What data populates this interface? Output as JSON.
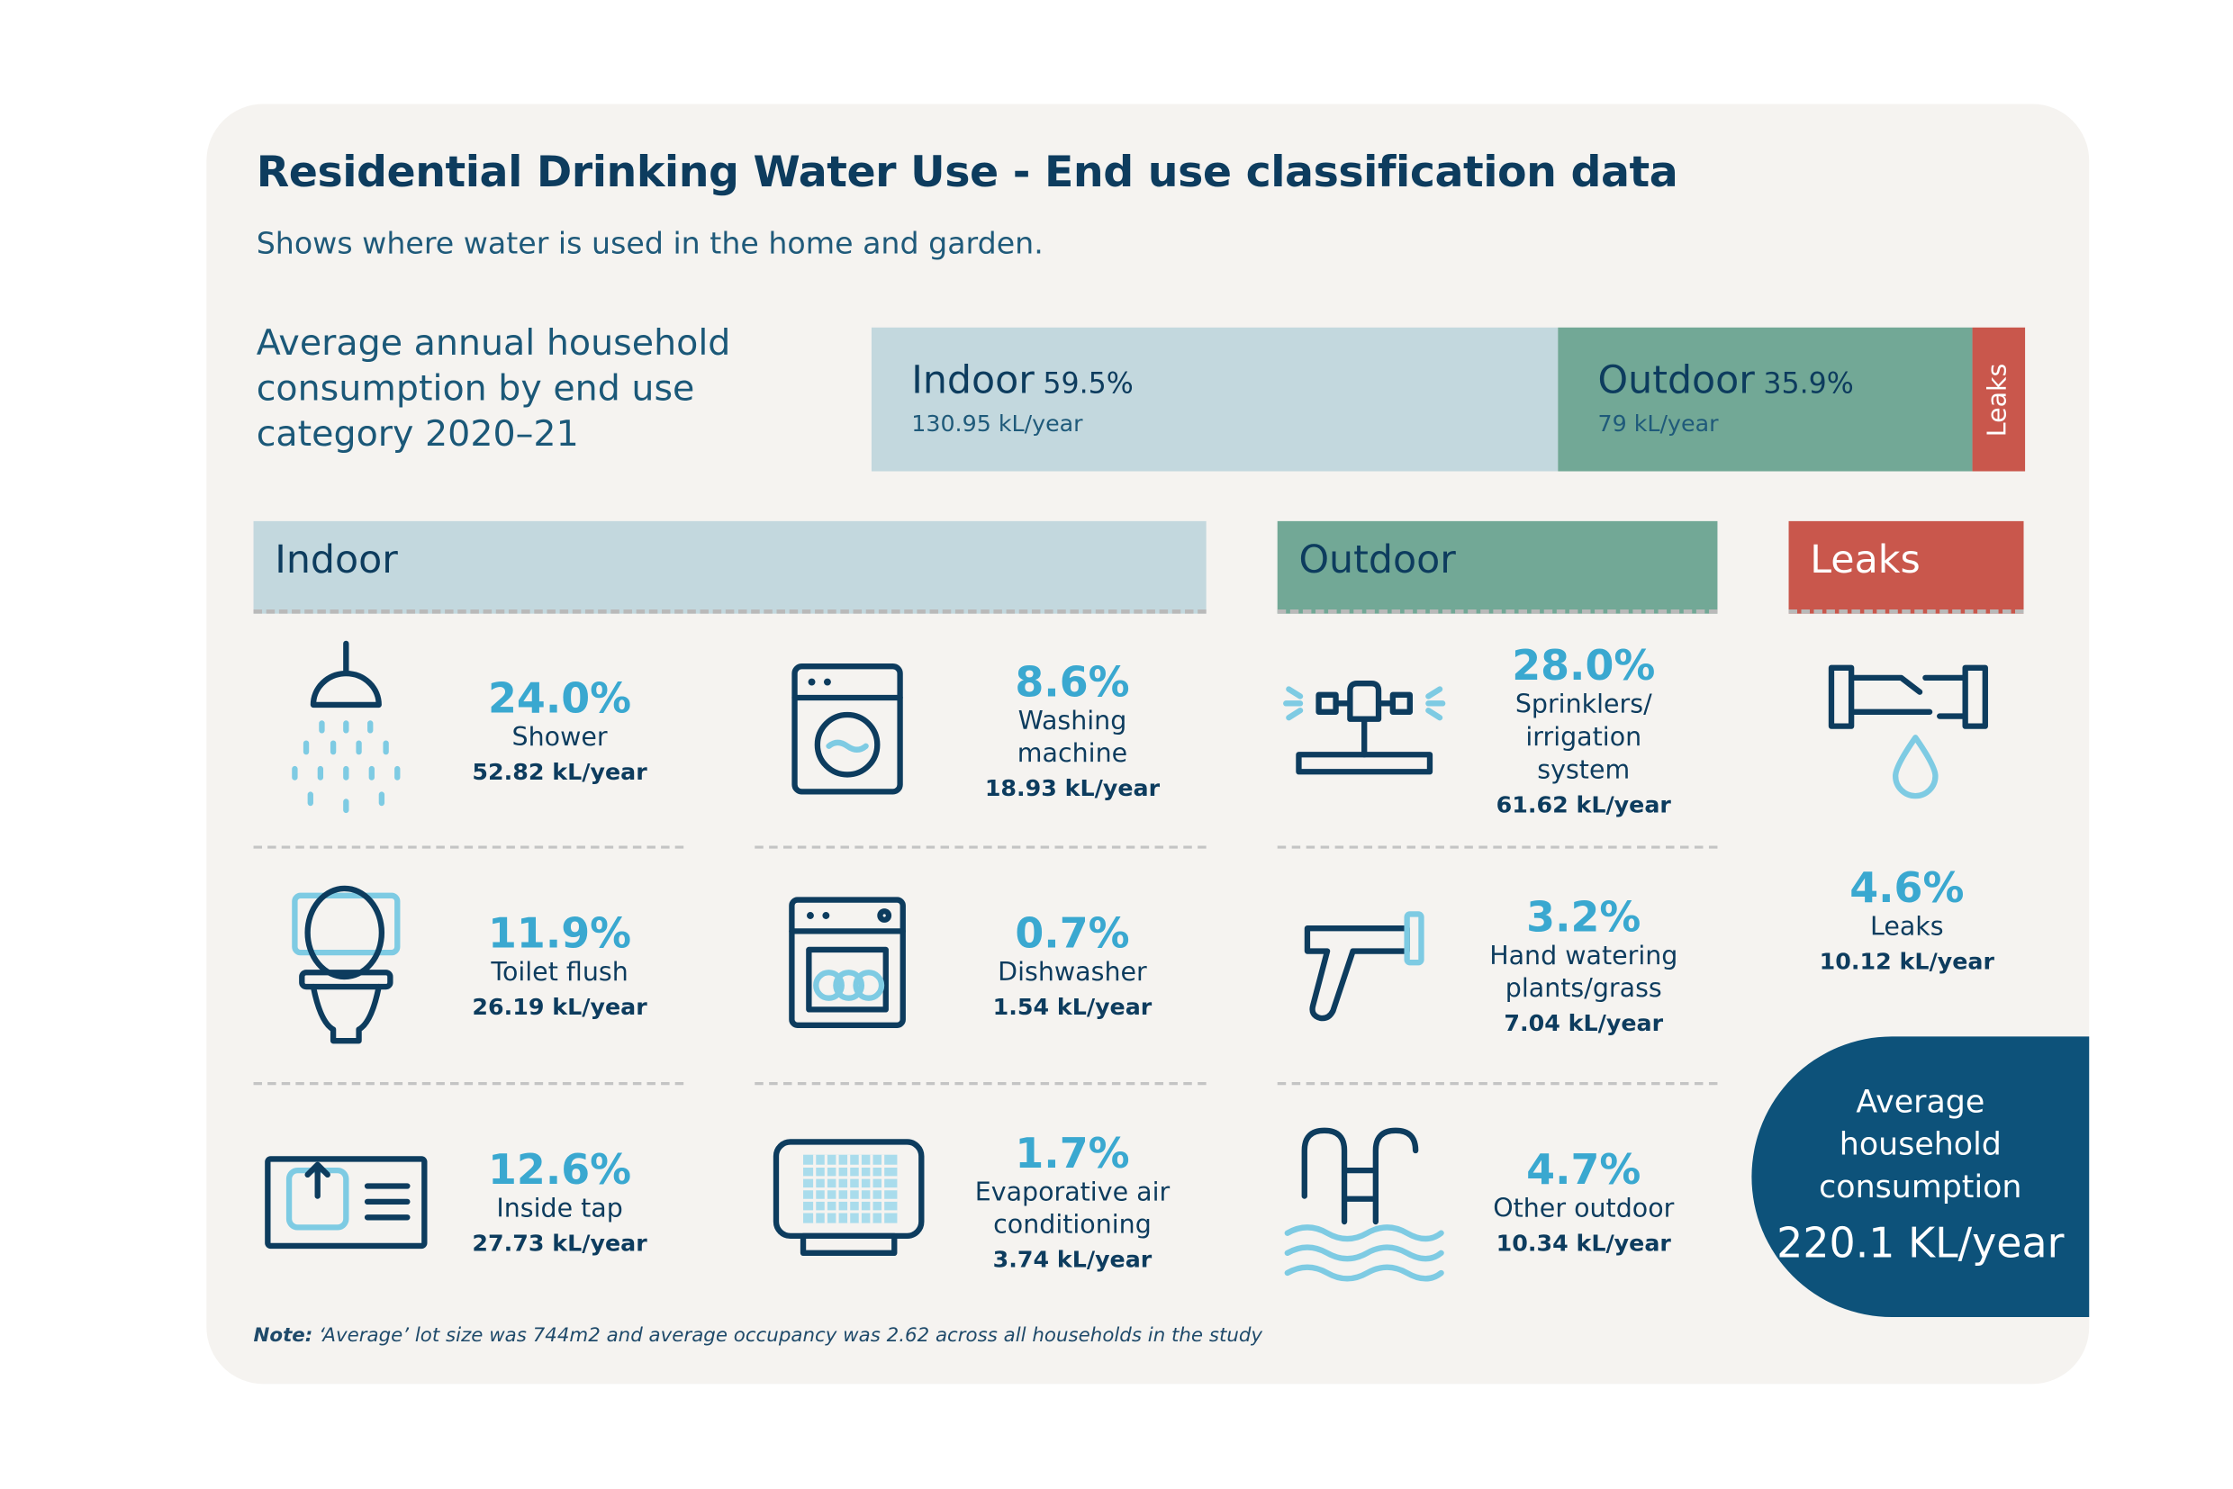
{
  "header": {
    "title": "Residential Drinking Water Use - End use classification data",
    "subtitle": "Shows where water is used in the home and garden."
  },
  "summary": {
    "label": [
      "Average annual household",
      "consumption by end use",
      "category 2020–21"
    ],
    "segments": [
      {
        "name": "Indoor",
        "percent": "59.5%",
        "amount": "130.95 kL/year"
      },
      {
        "name": "Outdoor",
        "percent": "35.9%",
        "amount": "79 kL/year"
      },
      {
        "name": "Leaks"
      }
    ]
  },
  "sections": [
    {
      "title": "Indoor",
      "items": [
        {
          "percent": "24.0%",
          "label": [
            "Shower"
          ],
          "amount": "52.82 kL/year"
        },
        {
          "percent": "8.6%",
          "label": [
            "Washing",
            "machine"
          ],
          "amount": "18.93 kL/year"
        },
        {
          "percent": "11.9%",
          "label": [
            "Toilet flush"
          ],
          "amount": "26.19 kL/year"
        },
        {
          "percent": "0.7%",
          "label": [
            "Dishwasher"
          ],
          "amount": "1.54 kL/year"
        },
        {
          "percent": "12.6%",
          "label": [
            "Inside tap"
          ],
          "amount": "27.73 kL/year"
        },
        {
          "percent": "1.7%",
          "label": [
            "Evaporative air",
            "conditioning"
          ],
          "amount": "3.74 kL/year"
        }
      ]
    },
    {
      "title": "Outdoor",
      "items": [
        {
          "percent": "28.0%",
          "label": [
            "Sprinklers/",
            "irrigation",
            "system"
          ],
          "amount": "61.62 kL/year"
        },
        {
          "percent": "3.2%",
          "label": [
            "Hand watering",
            "plants/grass"
          ],
          "amount": "7.04 kL/year"
        },
        {
          "percent": "4.7%",
          "label": [
            "Other outdoor"
          ],
          "amount": "10.34 kL/year"
        }
      ]
    },
    {
      "title": "Leaks",
      "items": [
        {
          "percent": "4.6%",
          "label": [
            "Leaks"
          ],
          "amount": "10.12 kL/year"
        }
      ]
    }
  ],
  "total": {
    "label": [
      "Average",
      "household",
      "consumption"
    ],
    "value": "220.1 KL/year"
  },
  "note": {
    "lead": "Note:",
    "text": "‘Average’ lot size was 744m2 and average occupancy was 2.62 across all households in the study"
  }
}
